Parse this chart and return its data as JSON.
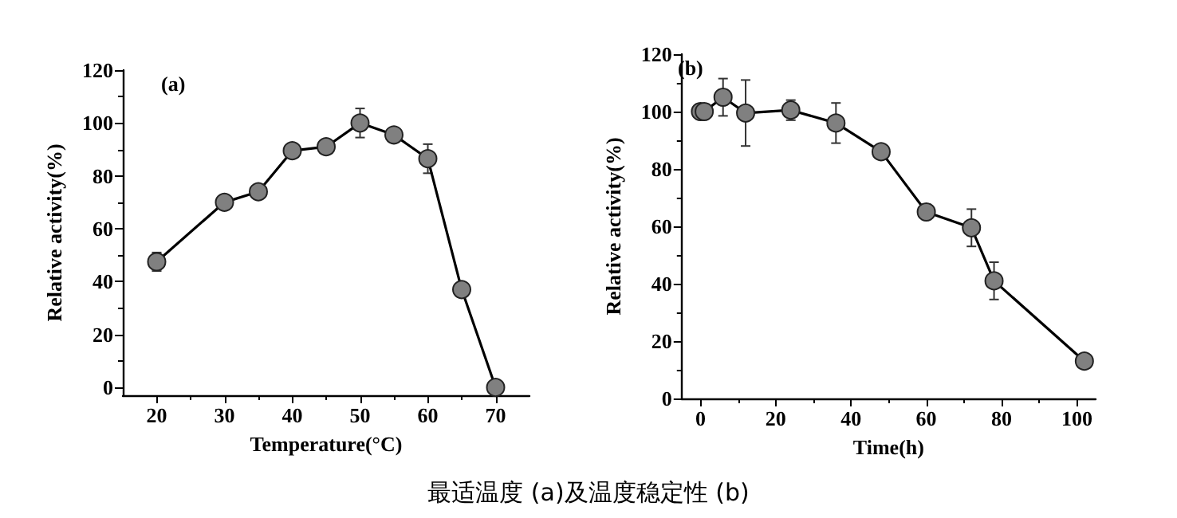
{
  "chart_data": [
    {
      "type": "line",
      "xlabel": "Temperature(°C)",
      "ylabel": "Relative activity(%)",
      "annotations": [
        "(a)",
        "最适温度 (a)及温度稳定性 (b)"
      ],
      "xlim": [
        15,
        75
      ],
      "xticks": [
        20,
        30,
        40,
        50,
        60,
        70
      ],
      "ylim": [
        -3,
        120
      ],
      "yticks": [
        0,
        20,
        40,
        60,
        80,
        100,
        120
      ],
      "grid": false,
      "marker": "circle",
      "line_style": "solid",
      "series": [
        {
          "color": "#808080",
          "x": [
            20,
            30,
            35,
            40,
            45,
            50,
            55,
            60,
            65,
            70
          ],
          "values": [
            47.5,
            70,
            74,
            89.5,
            91,
            100,
            95.5,
            86.5,
            37,
            0
          ],
          "errors": [
            3.5,
            1.5,
            1,
            1.5,
            1.5,
            5.5,
            1,
            5.5,
            null,
            null
          ]
        }
      ]
    },
    {
      "type": "line",
      "xlabel": "Time(h)",
      "ylabel": "Relative activity(%)",
      "annotations": [
        "(b)"
      ],
      "xlim": [
        -5,
        105
      ],
      "xticks": [
        0,
        20,
        40,
        60,
        80,
        100
      ],
      "ylim": [
        0,
        120
      ],
      "yticks": [
        0,
        20,
        40,
        60,
        80,
        100,
        120
      ],
      "grid": false,
      "marker": "circle",
      "line_style": "solid",
      "series": [
        {
          "color": "#808080",
          "x": [
            0,
            1,
            6,
            12,
            24,
            36,
            48,
            60,
            72,
            78,
            102
          ],
          "values": [
            100,
            100,
            105,
            99.5,
            100.5,
            96,
            86,
            65,
            59.5,
            41,
            13
          ],
          "errors": [
            1.5,
            null,
            6.5,
            11.5,
            3.5,
            7,
            1,
            1.5,
            6.5,
            6.5,
            null
          ]
        }
      ]
    }
  ]
}
